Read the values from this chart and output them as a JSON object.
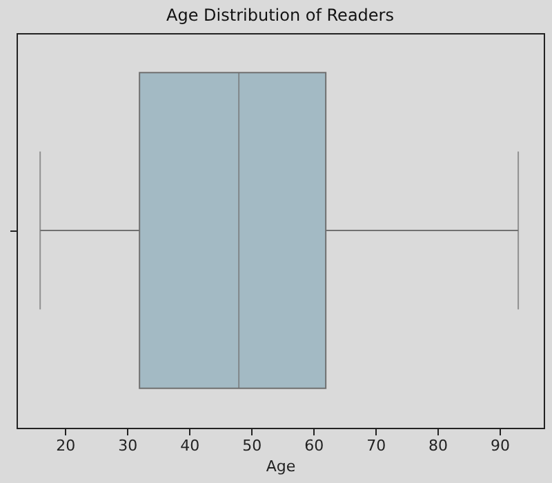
{
  "chart_data": {
    "type": "box",
    "orientation": "horizontal",
    "title": "Age Distribution of Readers",
    "xlabel": "Age",
    "categories": [
      null
    ],
    "color": "#a3bac4",
    "boxes": [
      {
        "low": 16,
        "q1": 32,
        "median": 48,
        "q3": 62,
        "high": 93
      }
    ],
    "xlim": [
      12.2,
      97.1
    ],
    "xticks": [
      20,
      30,
      40,
      50,
      60,
      70,
      80,
      90
    ]
  }
}
